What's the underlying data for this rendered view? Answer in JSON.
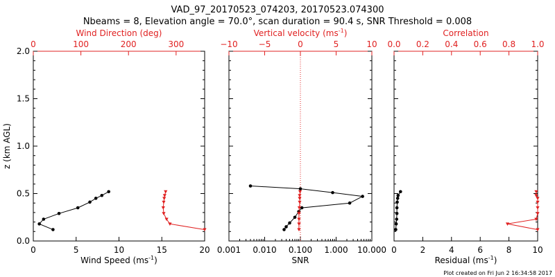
{
  "header": {
    "title": "VAD_97_20170523_074203, 20170523.074300",
    "subtitle": "Nbeams = 8, Elevation angle = 70.0°, scan duration = 90.4 s, SNR Threshold = 0.008"
  },
  "footer": {
    "credit": "Plot created on Fri Jun  2 16:34:58 2017"
  },
  "colors": {
    "primary": "#000000",
    "secondary": "#e02020"
  },
  "chart_data": [
    {
      "type": "line",
      "ylabel": "z (km AGL)",
      "ylim": [
        0,
        2.0
      ],
      "yticks": [
        "0.0",
        "0.5",
        "1.0",
        "1.5",
        "2.0"
      ],
      "bottom_axis": {
        "label": "Wind Speed (ms",
        "label_sup": "-1",
        "label_end": ")",
        "lim": [
          0,
          20
        ],
        "ticks": [
          "0",
          "5",
          "10",
          "15",
          "20"
        ],
        "scale": "linear"
      },
      "top_axis": {
        "label": "Wind Direction (deg)",
        "lim": [
          0,
          360
        ],
        "ticks": [
          "0",
          "100",
          "200",
          "300"
        ],
        "scale": "linear"
      },
      "series": [
        {
          "axis": "bottom",
          "color": "#000000",
          "marker": "circle",
          "x": [
            2.3,
            0.7,
            1.2,
            3.0,
            5.2,
            6.6,
            7.3,
            8.0,
            8.8
          ],
          "y": [
            0.12,
            0.18,
            0.23,
            0.29,
            0.35,
            0.41,
            0.45,
            0.48,
            0.52
          ]
        },
        {
          "axis": "top",
          "color": "#e02020",
          "marker": "triangle",
          "x": [
            360,
            287,
            280,
            274,
            273,
            274,
            275,
            276,
            278
          ],
          "y": [
            0.12,
            0.18,
            0.23,
            0.29,
            0.35,
            0.41,
            0.45,
            0.48,
            0.52
          ]
        }
      ]
    },
    {
      "type": "line",
      "ylim": [
        0,
        2.0
      ],
      "bottom_axis": {
        "label": "SNR",
        "lim": [
          0.001,
          10
        ],
        "ticks": [
          "0.001",
          "0.010",
          "0.100",
          "1.000",
          "10.000"
        ],
        "tick_values": [
          0.001,
          0.01,
          0.1,
          1,
          10
        ],
        "scale": "log"
      },
      "top_axis": {
        "label": "Vertical velocity (ms",
        "label_sup": "-1",
        "label_end": ")",
        "lim": [
          -10,
          10
        ],
        "ticks": [
          "−10",
          "−5",
          "0",
          "5",
          "10"
        ],
        "scale": "linear"
      },
      "reference_line": {
        "axis": "top",
        "value": 0,
        "color": "#e02020",
        "style": "dotted"
      },
      "series": [
        {
          "axis": "bottom",
          "color": "#000000",
          "marker": "circle",
          "x": [
            0.035,
            0.04,
            0.05,
            0.07,
            0.09,
            0.11,
            2.4,
            5.5,
            0.8,
            0.1,
            0.004
          ],
          "y": [
            0.12,
            0.15,
            0.19,
            0.25,
            0.31,
            0.35,
            0.4,
            0.47,
            0.51,
            0.55,
            0.58
          ]
        },
        {
          "axis": "top",
          "color": "#e02020",
          "marker": "triangle",
          "x": [
            -0.2,
            -0.2,
            -0.2,
            -0.2,
            -0.15,
            -0.1,
            -0.1,
            -0.1,
            -0.05
          ],
          "y": [
            0.12,
            0.18,
            0.23,
            0.29,
            0.35,
            0.41,
            0.45,
            0.48,
            0.52
          ]
        }
      ]
    },
    {
      "type": "line",
      "ylim": [
        0,
        2.0
      ],
      "bottom_axis": {
        "label": "Residual (ms",
        "label_sup": "-1",
        "label_end": ")",
        "lim": [
          0,
          10
        ],
        "ticks": [
          "0",
          "2",
          "4",
          "6",
          "8",
          "10"
        ],
        "scale": "linear"
      },
      "top_axis": {
        "label": "Correlation",
        "lim": [
          0,
          1.0
        ],
        "ticks": [
          "0.0",
          "0.2",
          "0.4",
          "0.6",
          "0.8",
          "1.0"
        ],
        "scale": "linear"
      },
      "series": [
        {
          "axis": "bottom",
          "color": "#000000",
          "marker": "circle",
          "x": [
            0.12,
            0.15,
            0.18,
            0.2,
            0.2,
            0.22,
            0.25,
            0.28,
            0.45
          ],
          "y": [
            0.12,
            0.18,
            0.23,
            0.29,
            0.35,
            0.41,
            0.45,
            0.48,
            0.52
          ]
        },
        {
          "axis": "top",
          "color": "#e02020",
          "marker": "triangle",
          "x": [
            1.0,
            0.79,
            0.99,
            1.0,
            1.0,
            1.0,
            1.0,
            0.99,
            0.99
          ],
          "y": [
            0.12,
            0.18,
            0.23,
            0.29,
            0.35,
            0.41,
            0.45,
            0.48,
            0.52
          ]
        }
      ]
    }
  ]
}
